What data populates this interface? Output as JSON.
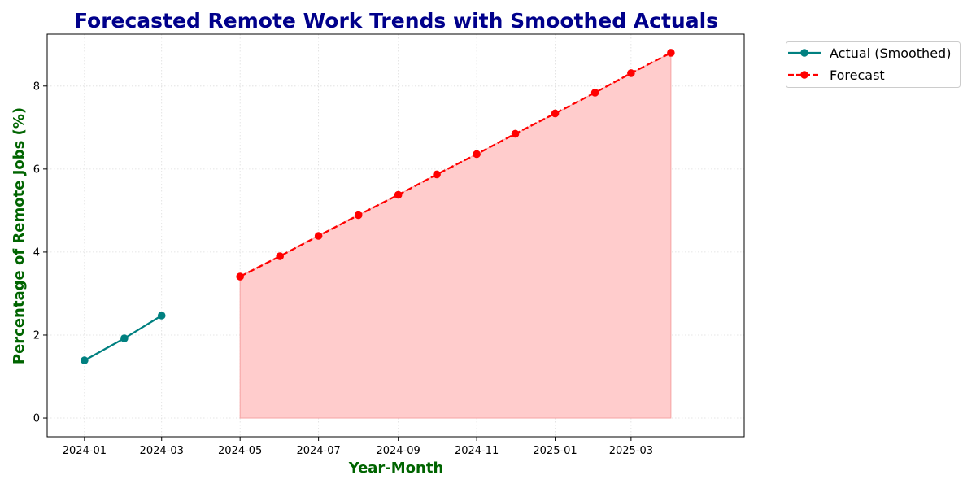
{
  "chart_data": {
    "type": "line",
    "title": "Forecasted Remote Work Trends with Smoothed Actuals",
    "xlabel": "Year-Month",
    "ylabel": "Percentage of Remote Jobs (%)",
    "x_ticks": [
      "2024-01",
      "2024-03",
      "2024-05",
      "2024-07",
      "2024-09",
      "2024-11",
      "2025-01",
      "2025-03"
    ],
    "y_ticks": [
      0,
      2,
      4,
      6,
      8
    ],
    "xlim": [
      "2023-12-03",
      "2025-05-28"
    ],
    "ylim": [
      -0.45,
      9.25
    ],
    "grid": true,
    "legend_position": "outside-top-right",
    "series": [
      {
        "name": "Actual (Smoothed)",
        "style": "solid",
        "color": "#008080",
        "points": [
          {
            "x": "2024-01",
            "y": 1.39
          },
          {
            "x": "2024-02",
            "y": 1.92
          },
          {
            "x": "2024-03",
            "y": 2.47
          }
        ]
      },
      {
        "name": "Forecast",
        "style": "dashed",
        "color": "#ff0000",
        "fill": "#ffcccc",
        "points": [
          {
            "x": "2024-05",
            "y": 3.41
          },
          {
            "x": "2024-06",
            "y": 3.9
          },
          {
            "x": "2024-07",
            "y": 4.39
          },
          {
            "x": "2024-08",
            "y": 4.89
          },
          {
            "x": "2024-09",
            "y": 5.38
          },
          {
            "x": "2024-10",
            "y": 5.87
          },
          {
            "x": "2024-11",
            "y": 6.36
          },
          {
            "x": "2024-12",
            "y": 6.85
          },
          {
            "x": "2025-01",
            "y": 7.34
          },
          {
            "x": "2025-02",
            "y": 7.84
          },
          {
            "x": "2025-03",
            "y": 8.31
          },
          {
            "x": "2025-04",
            "y": 8.8
          }
        ]
      }
    ]
  },
  "colors": {
    "title": "#00008b",
    "axis_label": "#006400"
  }
}
